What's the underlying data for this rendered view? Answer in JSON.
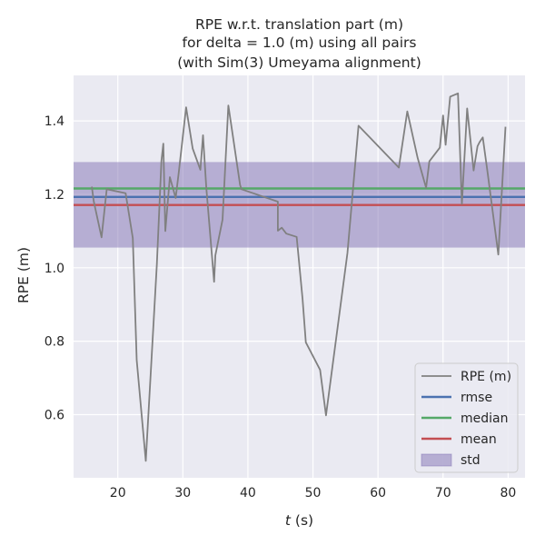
{
  "chart_data": {
    "type": "line",
    "title_lines": [
      "RPE w.r.t. translation part (m)",
      "for delta = 1.0 (m) using all pairs",
      "(with Sim(3) Umeyama alignment)"
    ],
    "xlabel": "t (s)",
    "xlabel_var": "t",
    "xlabel_unit": " (s)",
    "ylabel": "RPE (m)",
    "xlim": [
      13.2,
      82.6
    ],
    "ylim": [
      0.428,
      1.524
    ],
    "xticks": [
      20,
      30,
      40,
      50,
      60,
      70,
      80
    ],
    "yticks": [
      0.6,
      0.8,
      1.0,
      1.2,
      1.4
    ],
    "ytick_labels": [
      "0.6",
      "0.8",
      "1.0",
      "1.2",
      "1.4"
    ],
    "grid": true,
    "legend_position": "lower-right",
    "series": [
      {
        "name": "RPE (m)",
        "color": "#808080",
        "x": [
          16.0,
          16.3,
          17.5,
          18.3,
          21.2,
          22.3,
          22.9,
          24.3,
          26.0,
          26.7,
          27.0,
          27.3,
          28.0,
          28.9,
          29.4,
          30.5,
          31.5,
          32.7,
          33.1,
          33.6,
          34.8,
          35.0,
          36.1,
          37.0,
          38.8,
          39.0,
          44.6,
          44.6,
          45.2,
          45.9,
          47.5,
          48.4,
          48.9,
          51.1,
          52.0,
          55.3,
          57.0,
          63.2,
          64.5,
          66.1,
          67.4,
          67.9,
          69.5,
          70.0,
          70.4,
          71.1,
          72.3,
          72.9,
          73.7,
          74.7,
          75.3,
          75.6,
          76.1,
          76.8,
          78.5,
          79.6
        ],
        "y": [
          1.221,
          1.181,
          1.083,
          1.214,
          1.203,
          1.081,
          0.749,
          0.474,
          1.01,
          1.291,
          1.338,
          1.1,
          1.247,
          1.19,
          1.264,
          1.437,
          1.325,
          1.267,
          1.361,
          1.219,
          0.962,
          1.034,
          1.131,
          1.442,
          1.226,
          1.214,
          1.18,
          1.101,
          1.109,
          1.093,
          1.084,
          0.915,
          0.797,
          0.722,
          0.598,
          1.04,
          1.387,
          1.273,
          1.426,
          1.299,
          1.218,
          1.29,
          1.327,
          1.415,
          1.335,
          1.466,
          1.475,
          1.174,
          1.434,
          1.265,
          1.331,
          1.342,
          1.355,
          1.265,
          1.036,
          1.384
        ]
      },
      {
        "name": "rmse",
        "color": "#4c72b0",
        "value": 1.193
      },
      {
        "name": "median",
        "color": "#55a868",
        "value": 1.216
      },
      {
        "name": "mean",
        "color": "#c44e52",
        "value": 1.171
      },
      {
        "name": "std",
        "color": "#8172b3",
        "band": [
          1.055,
          1.288
        ]
      }
    ],
    "colors": {
      "plot_background": "#eaeaf2",
      "grid": "#ffffff",
      "text": "#262626"
    }
  }
}
